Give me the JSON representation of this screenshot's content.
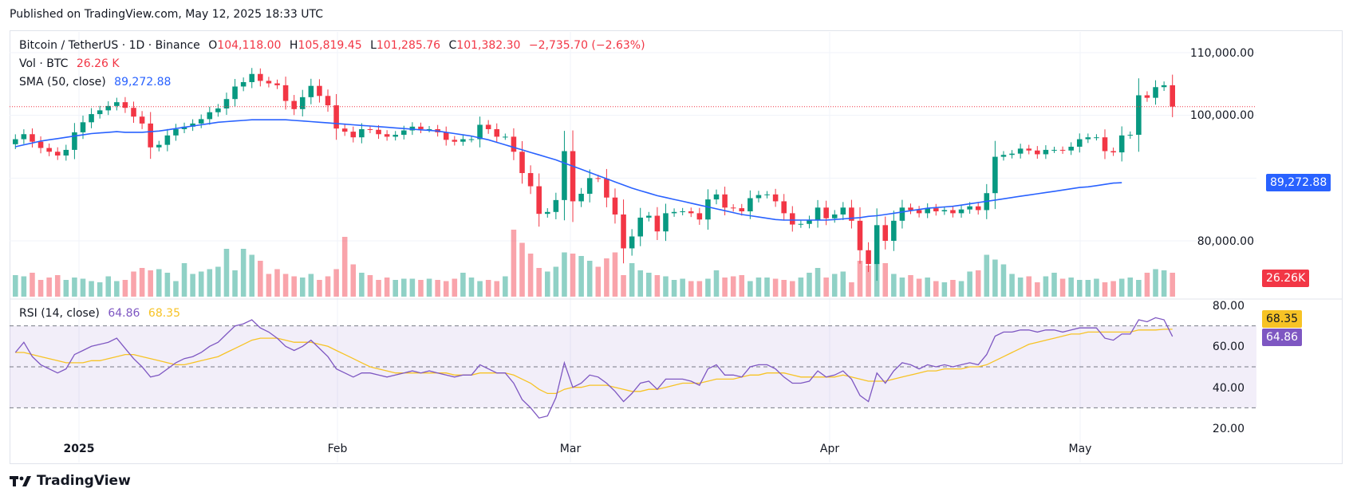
{
  "header": {
    "published": "Published on TradingView.com, May 12, 2025 18:33 UTC"
  },
  "legend": {
    "symbol": "Bitcoin / TetherUS · 1D · Binance",
    "o_label": "O",
    "o_value": "104,118.00",
    "h_label": "H",
    "h_value": "105,819.45",
    "l_label": "L",
    "l_value": "101,285.76",
    "c_label": "C",
    "c_value": "101,382.30",
    "change": "−2,735.70 (−2.63%)",
    "vol_label": "Vol · BTC",
    "vol_value": "26.26 K",
    "sma_label": "SMA (50, close)",
    "sma_value": "89,272.88"
  },
  "rsi_legend": {
    "label": "RSI (14, close)",
    "rsi_value": "64.86",
    "ma_value": "68.35"
  },
  "price_axis": [
    "110,000.00",
    "100,000.00",
    "80,000.00"
  ],
  "rsi_axis": [
    "80.00",
    "60.00",
    "40.00",
    "20.00"
  ],
  "time_axis": [
    "2025",
    "Feb",
    "Mar",
    "Apr",
    "May"
  ],
  "tags": {
    "sma": "89,272.88",
    "volume": "26.26K",
    "rsi_ma": "68.35",
    "rsi": "64.86"
  },
  "footer": {
    "logo_text": "TradingView"
  },
  "colors": {
    "up": "#089981",
    "down": "#f23645",
    "sma": "#2962ff",
    "rsi": "#7e57c2",
    "rsi_ma": "#f7c325"
  },
  "chart_data": {
    "type": "candlestick",
    "title": "Bitcoin / TetherUS · 1D · Binance",
    "x_ticks": [
      "2025",
      "Feb",
      "Mar",
      "Apr",
      "May"
    ],
    "price_range": [
      74000,
      112000
    ],
    "rsi_range": [
      20,
      80
    ],
    "rsi_bands": [
      30,
      50,
      70
    ],
    "last_price": 101382.3,
    "close": [
      96200,
      97000,
      95800,
      94800,
      94200,
      93600,
      94500,
      97300,
      98900,
      100200,
      100800,
      101500,
      102100,
      101200,
      99800,
      98700,
      94900,
      95300,
      96800,
      97800,
      98200,
      98700,
      99400,
      100500,
      101100,
      102600,
      104600,
      105300,
      106600,
      105500,
      105100,
      104800,
      102300,
      101000,
      102900,
      104700,
      103100,
      101600,
      97900,
      97400,
      96500,
      97800,
      97700,
      97000,
      96600,
      96900,
      97600,
      98200,
      97800,
      97800,
      97300,
      96100,
      95800,
      96200,
      96200,
      98500,
      97800,
      96600,
      96600,
      94200,
      90800,
      88700,
      84300,
      84600,
      86500,
      94300,
      86300,
      87500,
      90000,
      89900,
      86900,
      84200,
      78800,
      80700,
      83700,
      84000,
      81500,
      84400,
      84600,
      84700,
      84400,
      83400,
      86600,
      87400,
      85300,
      85200,
      84700,
      86800,
      87300,
      87400,
      86300,
      84400,
      82600,
      82700,
      83300,
      85300,
      83600,
      84200,
      85300,
      83200,
      78500,
      76300,
      82500,
      80000,
      83200,
      85300,
      84900,
      84400,
      85200,
      84700,
      84900,
      84400,
      85000,
      85500,
      84900,
      87600,
      93400,
      93700,
      93900,
      94700,
      94400,
      93800,
      94500,
      94500,
      94400,
      95000,
      96200,
      96500,
      96500,
      94300,
      94100,
      96800,
      96900,
      103200,
      102800,
      104500,
      104800,
      101400
    ],
    "sma_50": [
      95000,
      95300,
      95600,
      95900,
      96100,
      96300,
      96500,
      96700,
      96900,
      97100,
      97200,
      97300,
      97400,
      97300,
      97300,
      97300,
      97400,
      97500,
      97700,
      97900,
      98100,
      98300,
      98500,
      98700,
      98900,
      99000,
      99100,
      99200,
      99300,
      99300,
      99300,
      99300,
      99300,
      99200,
      99100,
      99000,
      98900,
      98800,
      98700,
      98600,
      98500,
      98400,
      98300,
      98200,
      98100,
      98000,
      97900,
      97800,
      97700,
      97600,
      97500,
      97300,
      97100,
      96900,
      96700,
      96400,
      96100,
      95700,
      95300,
      94900,
      94500,
      94100,
      93700,
      93300,
      92900,
      92400,
      91900,
      91400,
      90900,
      90400,
      89900,
      89400,
      88900,
      88400,
      88000,
      87600,
      87200,
      86900,
      86600,
      86300,
      86000,
      85700,
      85400,
      85100,
      84800,
      84500,
      84200,
      84000,
      83800,
      83600,
      83400,
      83300,
      83300,
      83300,
      83300,
      83300,
      83300,
      83400,
      83500,
      83600,
      83700,
      83900,
      84000,
      84200,
      84400,
      84600,
      84800,
      85000,
      85200,
      85300,
      85400,
      85500,
      85700,
      85900,
      86100,
      86300,
      86500,
      86700,
      86900,
      87100,
      87300,
      87500,
      87700,
      87900,
      88100,
      88300,
      88500,
      88600,
      88800,
      89000,
      89200,
      89272.88
    ],
    "volume_k": [
      18,
      17,
      20,
      14,
      16,
      18,
      14,
      16,
      15,
      13,
      12,
      17,
      13,
      14,
      21,
      24,
      22,
      23,
      20,
      13,
      28,
      19,
      21,
      23,
      25,
      40,
      22,
      40,
      35,
      30,
      19,
      23,
      19,
      17,
      16,
      19,
      14,
      17,
      23,
      50,
      27,
      20,
      18,
      14,
      16,
      14,
      15,
      15,
      14,
      15,
      14,
      13,
      15,
      20,
      16,
      13,
      14,
      13,
      17,
      56,
      45,
      36,
      24,
      21,
      25,
      37,
      36,
      34,
      30,
      25,
      32,
      37,
      18,
      28,
      22,
      20,
      18,
      17,
      14,
      15,
      13,
      13,
      15,
      22,
      16,
      17,
      18,
      13,
      16,
      16,
      15,
      14,
      13,
      16,
      20,
      24,
      16,
      19,
      21,
      12,
      30,
      26,
      29,
      28,
      19,
      16,
      18,
      15,
      16,
      13,
      12,
      14,
      13,
      21,
      22,
      35,
      31,
      27,
      19,
      16,
      17,
      12,
      17,
      20,
      15,
      16,
      14,
      14,
      15,
      12,
      13,
      15,
      16,
      14,
      20,
      23,
      22,
      20,
      26.26
    ],
    "rsi": [
      57,
      62,
      55,
      51,
      49,
      47,
      49,
      56,
      58,
      60,
      61,
      62,
      64,
      59,
      54,
      50,
      45,
      46,
      49,
      52,
      54,
      55,
      57,
      60,
      62,
      66,
      70,
      71,
      73,
      69,
      67,
      64,
      60,
      58,
      60,
      63,
      59,
      55,
      49,
      47,
      45,
      47,
      47,
      46,
      45,
      46,
      47,
      48,
      47,
      48,
      47,
      46,
      45,
      46,
      46,
      51,
      49,
      47,
      47,
      42,
      34,
      30,
      25,
      26,
      35,
      52,
      40,
      42,
      46,
      45,
      42,
      38,
      33,
      37,
      42,
      43,
      39,
      44,
      44,
      44,
      43,
      41,
      49,
      51,
      46,
      46,
      45,
      50,
      51,
      51,
      49,
      45,
      42,
      42,
      43,
      48,
      45,
      46,
      48,
      44,
      36,
      33,
      47,
      42,
      48,
      52,
      51,
      49,
      51,
      50,
      51,
      50,
      51,
      52,
      51,
      56,
      65,
      67,
      67,
      68,
      68,
      67,
      68,
      68,
      67,
      68,
      69,
      69,
      69,
      64,
      63,
      66,
      66,
      73,
      72,
      74,
      73,
      64.86
    ],
    "rsi_ma": [
      57,
      57,
      56,
      55,
      54,
      53,
      52,
      52,
      52,
      53,
      53,
      54,
      55,
      56,
      56,
      55,
      54,
      53,
      52,
      51,
      51,
      52,
      53,
      54,
      55,
      57,
      59,
      61,
      63,
      64,
      64,
      64,
      63,
      62,
      62,
      62,
      61,
      60,
      58,
      56,
      54,
      52,
      50,
      49,
      48,
      47,
      47,
      47,
      47,
      47,
      47,
      47,
      46,
      46,
      46,
      47,
      47,
      47,
      47,
      46,
      44,
      42,
      39,
      37,
      37,
      39,
      40,
      40,
      41,
      41,
      41,
      40,
      39,
      38,
      38,
      39,
      39,
      40,
      41,
      42,
      42,
      42,
      43,
      44,
      44,
      44,
      45,
      46,
      46,
      47,
      47,
      47,
      46,
      45,
      45,
      45,
      45,
      45,
      46,
      45,
      44,
      43,
      43,
      43,
      44,
      45,
      46,
      47,
      48,
      48,
      49,
      49,
      49,
      50,
      50,
      51,
      53,
      55,
      57,
      59,
      61,
      62,
      63,
      64,
      65,
      66,
      66,
      67,
      67,
      67,
      67,
      67,
      67,
      68,
      68,
      68,
      68.35,
      68.35
    ]
  }
}
